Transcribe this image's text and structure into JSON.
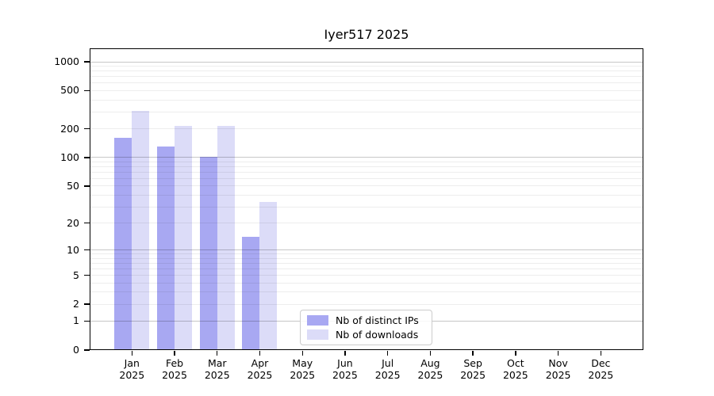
{
  "chart_data": {
    "type": "bar",
    "title": "Iyer517 2025",
    "categories": [
      "Jan",
      "Feb",
      "Mar",
      "Apr",
      "May",
      "Jun",
      "Jul",
      "Aug",
      "Sep",
      "Oct",
      "Nov",
      "Dec"
    ],
    "year": "2025",
    "series": [
      {
        "name": "Nb of distinct IPs",
        "color": "#a8a8f2",
        "values": [
          160,
          130,
          102,
          14,
          0,
          0,
          0,
          0,
          0,
          0,
          0,
          0
        ]
      },
      {
        "name": "Nb of downloads",
        "color": "#dcdcf8",
        "values": [
          310,
          215,
          215,
          34,
          0,
          0,
          0,
          0,
          0,
          0,
          0,
          0
        ]
      }
    ],
    "y_ticks": [
      "0",
      "1",
      "2",
      "5",
      "10",
      "20",
      "50",
      "100",
      "200",
      "500",
      "1000"
    ],
    "y_tick_values": [
      0,
      1,
      2,
      5,
      10,
      20,
      50,
      100,
      200,
      500,
      1000
    ],
    "y_scale": "log1p",
    "ylim": [
      0,
      1400
    ],
    "xlabel": "",
    "ylabel": "",
    "grid": "on",
    "legend_position": "bottom-center",
    "colors": {
      "major_grid": "rgba(0,0,0,0.22)",
      "minor_grid": "rgba(0,0,0,0.07)",
      "axis": "#000000",
      "background": "#ffffff"
    }
  }
}
